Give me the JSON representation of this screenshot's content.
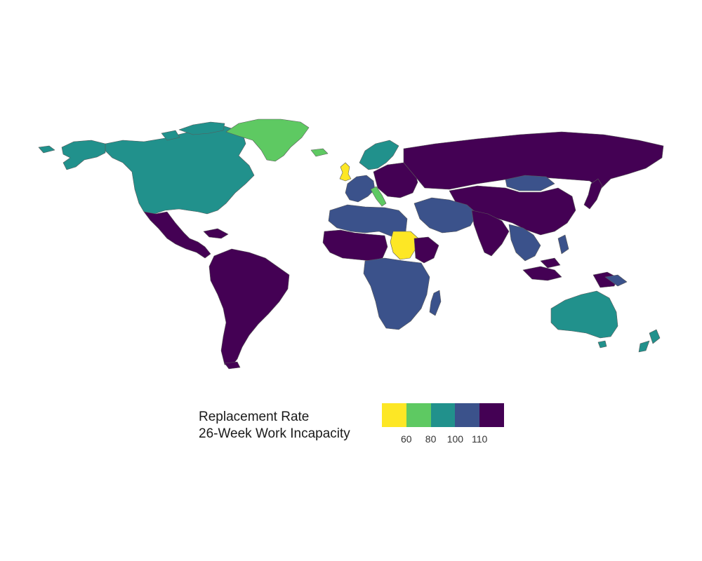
{
  "legend": {
    "title_line1": "Replacement Rate",
    "title_line2": "26-Week Work Incapacity",
    "bins": [
      {
        "color": "#fde725"
      },
      {
        "color": "#5ec962"
      },
      {
        "color": "#21918c"
      },
      {
        "color": "#3b528b"
      },
      {
        "color": "#440154"
      }
    ],
    "ticks": [
      "60",
      "80",
      "100",
      "110"
    ]
  },
  "regions": [
    {
      "name": "north-america",
      "color": "#21918c"
    },
    {
      "name": "alaska",
      "color": "#21918c"
    },
    {
      "name": "greenland",
      "color": "#5ec962"
    },
    {
      "name": "mexico-central-america",
      "color": "#440154"
    },
    {
      "name": "south-america",
      "color": "#440154"
    },
    {
      "name": "united-kingdom",
      "color": "#fde725"
    },
    {
      "name": "scandinavia",
      "color": "#21918c"
    },
    {
      "name": "western-europe",
      "color": "#3b528b"
    },
    {
      "name": "italy",
      "color": "#5ec962"
    },
    {
      "name": "eastern-europe",
      "color": "#440154"
    },
    {
      "name": "russia",
      "color": "#440154"
    },
    {
      "name": "mongolia",
      "color": "#3b528b"
    },
    {
      "name": "china",
      "color": "#440154"
    },
    {
      "name": "north-africa",
      "color": "#3b528b"
    },
    {
      "name": "sahel",
      "color": "#440154"
    },
    {
      "name": "sudan",
      "color": "#fde725"
    },
    {
      "name": "ethiopia",
      "color": "#440154"
    },
    {
      "name": "central-south-africa",
      "color": "#3b528b"
    },
    {
      "name": "madagascar",
      "color": "#3b528b"
    },
    {
      "name": "middle-east",
      "color": "#3b528b"
    },
    {
      "name": "india",
      "color": "#440154"
    },
    {
      "name": "southeast-asia",
      "color": "#3b528b"
    },
    {
      "name": "indonesia",
      "color": "#440154"
    },
    {
      "name": "australia",
      "color": "#21918c"
    },
    {
      "name": "new-zealand",
      "color": "#21918c"
    },
    {
      "name": "japan",
      "color": "#440154"
    }
  ]
}
